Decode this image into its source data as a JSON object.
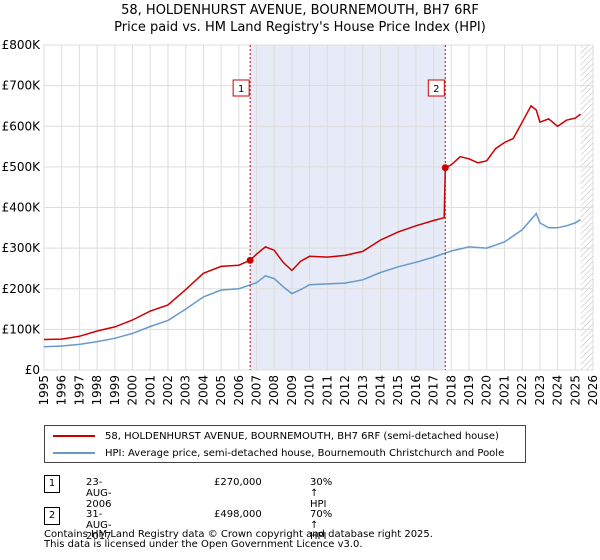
{
  "title": "58, HOLDENHURST AVENUE, BOURNEMOUTH, BH7 6RF",
  "subtitle": "Price paid vs. HM Land Registry's House Price Index (HPI)",
  "chart_data": {
    "type": "line",
    "xlim": [
      1995,
      2026
    ],
    "ylim": [
      0,
      800000
    ],
    "y_ticks": [
      0,
      100000,
      200000,
      300000,
      400000,
      500000,
      600000,
      700000,
      800000
    ],
    "y_tick_labels": [
      "£0",
      "£100K",
      "£200K",
      "£300K",
      "£400K",
      "£500K",
      "£600K",
      "£700K",
      "£800K"
    ],
    "x_ticks": [
      1995,
      1996,
      1997,
      1998,
      1999,
      2000,
      2001,
      2002,
      2003,
      2004,
      2005,
      2006,
      2007,
      2008,
      2009,
      2010,
      2011,
      2012,
      2013,
      2014,
      2015,
      2016,
      2017,
      2018,
      2019,
      2020,
      2021,
      2022,
      2023,
      2024,
      2025,
      2026
    ],
    "shaded_period": [
      2006.64,
      2017.66
    ],
    "future_hatch_start": 2025.3,
    "series": [
      {
        "name": "58, HOLDENHURST AVENUE, BOURNEMOUTH, BH7 6RF (semi-detached house)",
        "color": "#cc0000",
        "x": [
          1995,
          1996,
          1997,
          1998,
          1999,
          2000,
          2001,
          2002,
          2003,
          2004,
          2005,
          2006,
          2006.64,
          2007,
          2007.5,
          2008,
          2008.5,
          2009,
          2009.5,
          2010,
          2011,
          2012,
          2013,
          2014,
          2015,
          2016,
          2017,
          2017.6,
          2017.66,
          2018,
          2018.5,
          2019,
          2019.5,
          2020,
          2020.5,
          2021,
          2021.5,
          2022,
          2022.5,
          2022.8,
          2023,
          2023.5,
          2024,
          2024.5,
          2025,
          2025.3
        ],
        "values": [
          75000,
          76000,
          83000,
          96000,
          106000,
          123000,
          145000,
          160000,
          198000,
          238000,
          255000,
          258000,
          270000,
          285000,
          303000,
          295000,
          265000,
          245000,
          268000,
          280000,
          278000,
          282000,
          292000,
          320000,
          340000,
          355000,
          368000,
          375000,
          498000,
          505000,
          525000,
          520000,
          510000,
          515000,
          545000,
          560000,
          570000,
          610000,
          650000,
          640000,
          610000,
          618000,
          600000,
          615000,
          620000,
          630000
        ]
      },
      {
        "name": "HPI: Average price, semi-detached house, Bournemouth Christchurch and Poole",
        "color": "#6699cc",
        "x": [
          1995,
          1996,
          1997,
          1998,
          1999,
          2000,
          2001,
          2002,
          2003,
          2004,
          2005,
          2006,
          2007,
          2007.5,
          2008,
          2008.5,
          2009,
          2009.5,
          2010,
          2011,
          2012,
          2013,
          2014,
          2015,
          2016,
          2017,
          2018,
          2019,
          2020,
          2021,
          2022,
          2022.8,
          2023,
          2023.5,
          2024,
          2024.5,
          2025,
          2025.3
        ],
        "values": [
          57000,
          59000,
          63000,
          70000,
          78000,
          90000,
          107000,
          122000,
          150000,
          180000,
          197000,
          200000,
          215000,
          232000,
          225000,
          205000,
          188000,
          198000,
          210000,
          212000,
          214000,
          222000,
          240000,
          254000,
          265000,
          278000,
          293000,
          303000,
          300000,
          315000,
          345000,
          385000,
          362000,
          350000,
          350000,
          355000,
          362000,
          370000
        ]
      }
    ],
    "markers": [
      {
        "label": "1",
        "x": 2006.64,
        "value": 270000
      },
      {
        "label": "2",
        "x": 2017.66,
        "value": 498000
      }
    ]
  },
  "legend": {
    "items": [
      {
        "label": "58, HOLDENHURST AVENUE, BOURNEMOUTH, BH7 6RF (semi-detached house)",
        "color": "#cc0000"
      },
      {
        "label": "HPI: Average price, semi-detached house, Bournemouth Christchurch and Poole",
        "color": "#6699cc"
      }
    ]
  },
  "transactions": [
    {
      "num": "1",
      "date": "23-AUG-2006",
      "price": "£270,000",
      "hpi": "30% ↑ HPI"
    },
    {
      "num": "2",
      "date": "31-AUG-2017",
      "price": "£498,000",
      "hpi": "70% ↑ HPI"
    }
  ],
  "footer": {
    "line1": "Contains HM Land Registry data © Crown copyright and database right 2025.",
    "line2": "This data is licensed under the Open Government Licence v3.0."
  }
}
